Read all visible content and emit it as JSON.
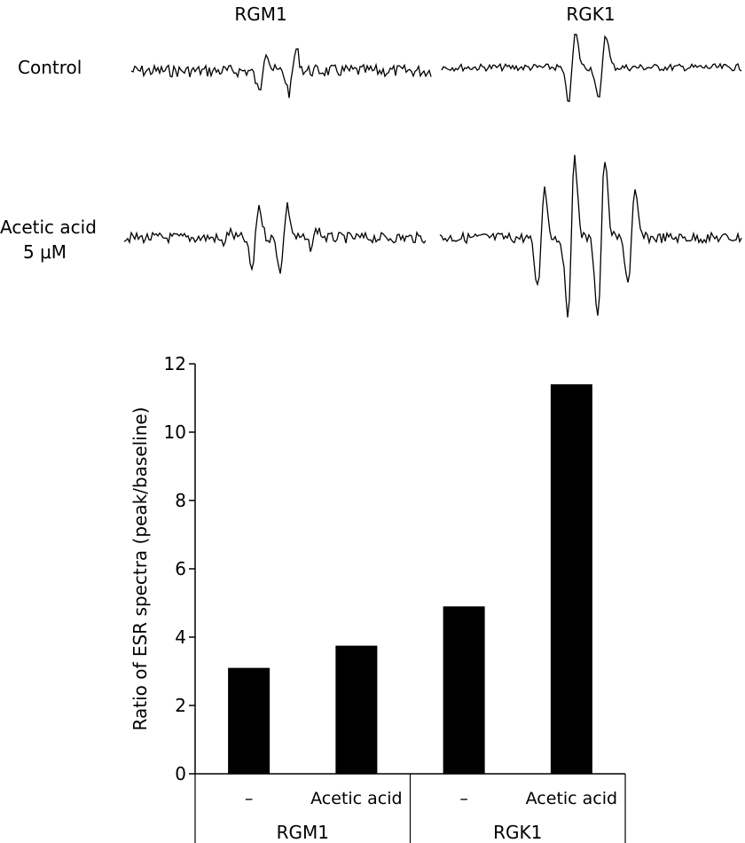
{
  "spectra": {
    "columns": [
      "RGM1",
      "RGK1"
    ],
    "rows": [
      {
        "label_lines": [
          "Control"
        ]
      },
      {
        "label_lines": [
          "Acetic acid",
          "5 μM"
        ]
      }
    ]
  },
  "chart_data": {
    "type": "bar",
    "ylabel": "Ratio of ESR spectra (peak/baseline)",
    "ylim": [
      0,
      12
    ],
    "yticks": [
      0,
      2,
      4,
      6,
      8,
      10,
      12
    ],
    "grid": false,
    "groups": [
      "RGM1",
      "RGK1"
    ],
    "categories": [
      "–",
      "Acetic acid",
      "–",
      "Acetic acid"
    ],
    "group_of_category": [
      "RGM1",
      "RGM1",
      "RGK1",
      "RGK1"
    ],
    "values": [
      3.1,
      3.75,
      4.9,
      11.4
    ],
    "bar_color": "#000000"
  }
}
